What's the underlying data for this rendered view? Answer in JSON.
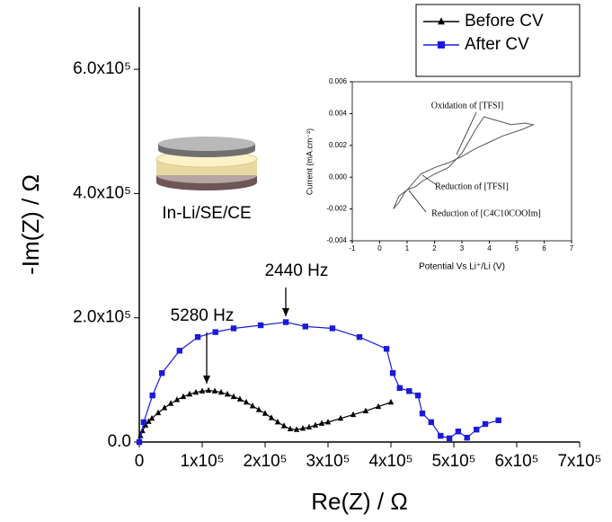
{
  "chart_data": [
    {
      "type": "line",
      "xlabel": "Re(Z) / Ω",
      "ylabel": "-Im(Z) / Ω",
      "xlim": [
        0,
        700000
      ],
      "ylim": [
        0,
        700000
      ],
      "xticks": [
        0,
        {
          "value": 100000,
          "label": "1x10⁵"
        },
        {
          "value": 200000,
          "label": "2x10⁵"
        },
        {
          "value": 300000,
          "label": "3x10⁵"
        },
        {
          "value": 400000,
          "label": "4x10⁵"
        },
        {
          "value": 500000,
          "label": "5x10⁵"
        },
        {
          "value": 600000,
          "label": "6x10⁵"
        },
        {
          "value": 700000,
          "label": "7x10⁵"
        }
      ],
      "yticks": [
        {
          "value": 0,
          "label": "0.0"
        },
        {
          "value": 200000,
          "label": "2.0x10⁵"
        },
        {
          "value": 400000,
          "label": "4.0x10⁵"
        },
        {
          "value": 600000,
          "label": "6.0x10⁵"
        }
      ],
      "legend": "upper right",
      "annotations": [
        "5280 Hz",
        "2440 Hz",
        "In-Li/SE/CE"
      ],
      "series": [
        {
          "name": "Before CV",
          "color": "#000000",
          "marker": "triangle",
          "x": [
            0,
            2000,
            5000,
            10000,
            15000,
            20000,
            30000,
            40000,
            50000,
            60000,
            70000,
            80000,
            90000,
            100000,
            110000,
            120000,
            130000,
            140000,
            150000,
            160000,
            170000,
            180000,
            190000,
            200000,
            210000,
            220000,
            230000,
            240000,
            250000,
            260000,
            270000,
            280000,
            290000,
            300000,
            320000,
            340000,
            360000,
            380000,
            400000
          ],
          "values": [
            0,
            10000,
            18000,
            27000,
            33000,
            38000,
            47000,
            55000,
            62000,
            68000,
            73000,
            77000,
            80000,
            82000,
            83000,
            82000,
            80000,
            77000,
            73000,
            69000,
            64000,
            58000,
            52000,
            46000,
            39000,
            32000,
            26000,
            21000,
            20000,
            22000,
            24000,
            27000,
            30000,
            32000,
            38000,
            44000,
            50000,
            57000,
            64000
          ]
        },
        {
          "name": "After CV",
          "color": "#1a1adb",
          "marker": "square",
          "x": [
            0,
            7000,
            21000,
            36000,
            64000,
            93000,
            121000,
            150000,
            193000,
            233000,
            264000,
            307000,
            350000,
            393000,
            403000,
            414000,
            429000,
            443000,
            450000,
            464000,
            479000,
            493000,
            507000,
            521000,
            536000,
            550000,
            571000
          ],
          "values": [
            0,
            32000,
            75000,
            111000,
            147000,
            169000,
            177000,
            183000,
            188000,
            193000,
            186000,
            183000,
            169000,
            150000,
            111000,
            87000,
            82000,
            75000,
            46000,
            32000,
            10000,
            6000,
            17000,
            7000,
            20000,
            29000,
            35000
          ]
        }
      ]
    },
    {
      "type": "line",
      "xlabel": "Potential Vs Li⁺/Li (V)",
      "ylabel": "Current (mA.cm⁻²)",
      "xlim": [
        -1,
        7
      ],
      "ylim": [
        -0.004,
        0.006
      ],
      "xticks": [
        -1,
        0,
        1,
        2,
        3,
        4,
        5,
        6,
        7
      ],
      "yticks": [
        -0.004,
        -0.002,
        {
          "value": 0,
          "label": "0.000"
        },
        0.002,
        0.004,
        0.006
      ],
      "annotations": [
        "Oxidation of [TFSI]",
        "Reduction of [TFSI]",
        "Reduction of [C4C10COOIm]"
      ],
      "series": [
        {
          "color": "#555555",
          "x": [
            0.5,
            0.7,
            1.0,
            1.3,
            1.6,
            2.0,
            2.5,
            3.0,
            3.5,
            3.8,
            4.2,
            4.8,
            5.3,
            5.6,
            5.2,
            4.5,
            4.0,
            3.5,
            3.0,
            2.5,
            2.0,
            1.5,
            1.2,
            0.9,
            0.7,
            0.5
          ],
          "values": [
            -0.002,
            -0.0012,
            -0.0008,
            -0.0006,
            -0.0002,
            0.0002,
            0.0006,
            0.0015,
            0.003,
            0.0038,
            0.0036,
            0.0033,
            0.0034,
            0.0033,
            0.003,
            0.0026,
            0.0022,
            0.0018,
            0.0013,
            0.0009,
            0.0006,
            0.0002,
            -0.0004,
            -0.001,
            -0.0016,
            -0.002
          ]
        }
      ]
    }
  ]
}
